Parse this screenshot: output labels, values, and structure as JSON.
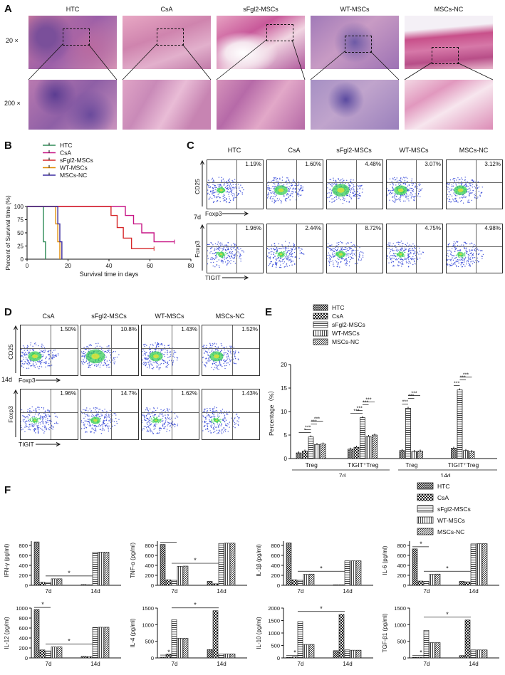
{
  "panelA": {
    "label": "A",
    "groups": [
      "HTC",
      "CsA",
      "sFgl2-MSCs",
      "WT-MSCs",
      "MSCs-NC"
    ],
    "row_labels": [
      "20 ×",
      "200 ×"
    ]
  },
  "panelB": {
    "label": "B",
    "chart_data": {
      "type": "line",
      "ylabel": "Percent of Survival time (%)",
      "xlabel": "Survival time in days",
      "xlim": [
        0,
        80
      ],
      "ylim": [
        0,
        100
      ],
      "xticks": [
        0,
        20,
        40,
        60,
        80
      ],
      "yticks": [
        0,
        25,
        50,
        75,
        100
      ],
      "legend_position": "top-left",
      "series": [
        {
          "name": "HTC",
          "color": "#2e8b57",
          "x": [
            0,
            8,
            8,
            9,
            9
          ],
          "y": [
            100,
            100,
            33,
            33,
            0
          ]
        },
        {
          "name": "CsA",
          "color": "#c71585",
          "x": [
            0,
            48,
            48,
            52,
            52,
            56,
            56,
            62,
            62,
            72
          ],
          "y": [
            100,
            100,
            83,
            83,
            67,
            67,
            50,
            50,
            33,
            33
          ]
        },
        {
          "name": "sFgl2-MSCs",
          "color": "#d62728",
          "x": [
            0,
            41,
            41,
            44,
            44,
            47,
            47,
            51,
            51,
            62
          ],
          "y": [
            100,
            100,
            83,
            83,
            60,
            60,
            40,
            40,
            20,
            20
          ]
        },
        {
          "name": "WT-MSCs",
          "color": "#e08a00",
          "x": [
            0,
            14,
            14,
            15,
            15,
            16,
            16
          ],
          "y": [
            100,
            100,
            67,
            67,
            33,
            33,
            0
          ]
        },
        {
          "name": "MSCs-NC",
          "color": "#3a2ca0",
          "x": [
            0,
            15,
            15,
            16,
            16,
            17,
            17
          ],
          "y": [
            100,
            100,
            67,
            67,
            33,
            33,
            0
          ]
        }
      ]
    }
  },
  "panelC": {
    "label": "C",
    "groups": [
      "HTC",
      "CsA",
      "sFgl2-MSCs",
      "WT-MSCs",
      "MSCs-NC"
    ],
    "time": "7d",
    "row1": {
      "ylabel": "CD25",
      "xlabel": "Foxp3",
      "pcts": [
        "1.19%",
        "1.60%",
        "4.48%",
        "3.07%",
        "3.12%"
      ]
    },
    "row2": {
      "ylabel": "Foxp3",
      "xlabel": "TIGIT",
      "pcts": [
        "1.96%",
        "2.44%",
        "8.72%",
        "4.75%",
        "4.98%"
      ]
    }
  },
  "panelD": {
    "label": "D",
    "groups": [
      "CsA",
      "sFgl2-MSCs",
      "WT-MSCs",
      "MSCs-NC"
    ],
    "time": "14d",
    "row1": {
      "ylabel": "CD25",
      "xlabel": "Foxp3",
      "pcts": [
        "1.50%",
        "10.8%",
        "1.43%",
        "1.52%"
      ]
    },
    "row2": {
      "ylabel": "Foxp3",
      "xlabel": "TIGIT",
      "pcts": [
        "1.96%",
        "14.7%",
        "1.62%",
        "1.43%"
      ]
    }
  },
  "panelE": {
    "label": "E",
    "chart_data": {
      "type": "bar",
      "ylabel": "Percentage（%）",
      "ylim": [
        0,
        20
      ],
      "yticks": [
        0,
        5,
        10,
        15,
        20
      ],
      "groups": [
        "Treg",
        "TIGIT⁺Treg",
        "Treg",
        "TIGIT⁺Treg"
      ],
      "times": [
        "7d",
        "14d"
      ],
      "series": [
        {
          "name": "HTC",
          "values": [
            1.2,
            2.0,
            1.7,
            2.2
          ]
        },
        {
          "name": "CsA",
          "values": [
            1.6,
            2.4,
            null,
            null
          ]
        },
        {
          "name": "sFgl2-MSCs",
          "values": [
            4.6,
            8.7,
            10.7,
            14.6
          ]
        },
        {
          "name": "WT-MSCs",
          "values": [
            3.0,
            4.7,
            1.5,
            1.7
          ]
        },
        {
          "name": "MSCs-NC",
          "values": [
            3.1,
            5.0,
            1.6,
            1.5
          ]
        }
      ],
      "sig": [
        "*",
        "***"
      ]
    }
  },
  "panelF": {
    "label": "F",
    "legend": [
      "HTC",
      "CsA",
      "sFgl2-MSCs",
      "WT-MSCs",
      "MSCs-NC"
    ],
    "xcats": [
      "7d",
      "14d"
    ],
    "chart_data": [
      {
        "type": "bar",
        "ylabel": "IFN-γ (pg/ml)",
        "ylim": [
          0,
          1000
        ],
        "yticks": [
          0,
          200,
          400,
          600,
          800,
          1000
        ],
        "values": [
          [
            870,
            60,
            55,
            130,
            130
          ],
          [
            15,
            10,
            660,
            665,
            665
          ]
        ]
      },
      {
        "type": "bar",
        "ylabel": "TNF-α (pg/ml)",
        "ylim": [
          0,
          1000
        ],
        "yticks": [
          0,
          200,
          400,
          600,
          800,
          1000
        ],
        "values": [
          [
            820,
            110,
            100,
            380,
            385
          ],
          [
            80,
            30,
            840,
            845,
            845
          ]
        ]
      },
      {
        "type": "bar",
        "ylabel": "IL-1β (pg/ml)",
        "ylim": [
          0,
          1000
        ],
        "yticks": [
          0,
          200,
          400,
          600,
          800,
          1000
        ],
        "values": [
          [
            850,
            110,
            100,
            220,
            225
          ],
          [
            10,
            10,
            490,
            490,
            490
          ]
        ]
      },
      {
        "type": "bar",
        "ylabel": "IL-6 (pg/ml)",
        "ylim": [
          0,
          1000
        ],
        "yticks": [
          0,
          200,
          400,
          600,
          800,
          1000
        ],
        "values": [
          [
            730,
            85,
            80,
            220,
            225
          ],
          [
            80,
            70,
            830,
            835,
            835
          ]
        ]
      },
      {
        "type": "bar",
        "ylabel": "IL-12 (pg/ml)",
        "ylim": [
          0,
          1000
        ],
        "yticks": [
          0,
          200,
          400,
          600,
          800,
          1000
        ],
        "values": [
          [
            970,
            160,
            140,
            220,
            220
          ],
          [
            30,
            25,
            610,
            615,
            615
          ]
        ]
      },
      {
        "type": "bar",
        "ylabel": "IL-4 (pg/ml)",
        "ylim": [
          0,
          1500
        ],
        "yticks": [
          0,
          500,
          1000,
          1500
        ],
        "values": [
          [
            20,
            110,
            1150,
            590,
            590
          ],
          [
            250,
            1420,
            120,
            120,
            120
          ]
        ]
      },
      {
        "type": "bar",
        "ylabel": "IL-10 (pg/ml)",
        "ylim": [
          0,
          2000
        ],
        "yticks": [
          0,
          500,
          1000,
          1500,
          2000
        ],
        "values": [
          [
            20,
            40,
            1460,
            540,
            540
          ],
          [
            290,
            1750,
            320,
            310,
            310
          ]
        ]
      },
      {
        "type": "bar",
        "ylabel": "TGF-β1 (pg/ml)",
        "ylim": [
          0,
          1500
        ],
        "yticks": [
          0,
          500,
          1000,
          1500
        ],
        "values": [
          [
            15,
            20,
            830,
            460,
            460
          ],
          [
            70,
            1140,
            240,
            240,
            240
          ]
        ]
      }
    ]
  },
  "colors": {
    "he_pink": "#d98aa8",
    "he_purple": "#8a5fa8",
    "flow_blue": "#2b3fd6",
    "flow_green": "#3ccf5a"
  }
}
